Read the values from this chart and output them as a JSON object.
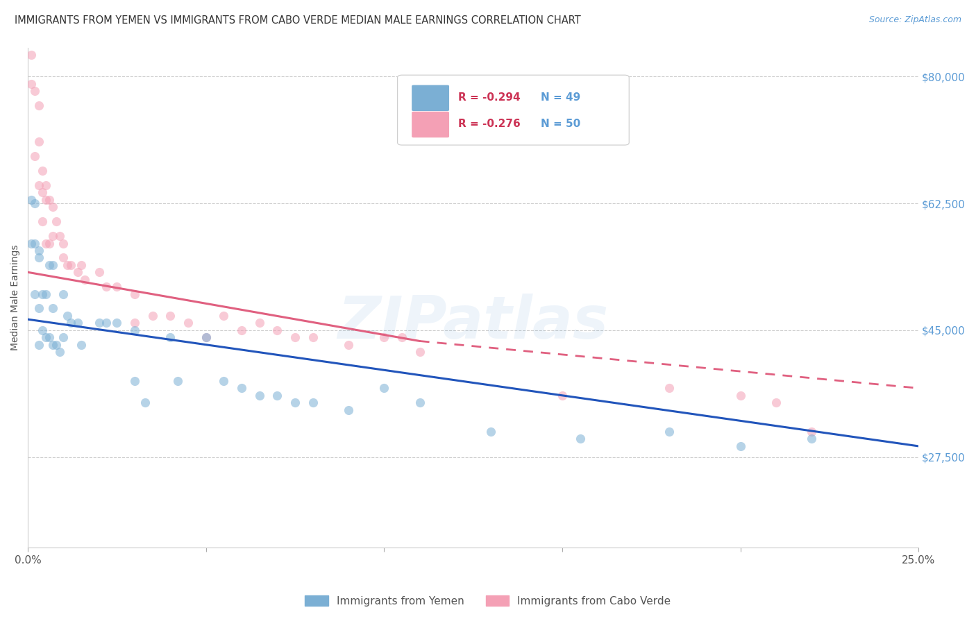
{
  "title": "IMMIGRANTS FROM YEMEN VS IMMIGRANTS FROM CABO VERDE MEDIAN MALE EARNINGS CORRELATION CHART",
  "source": "Source: ZipAtlas.com",
  "ylabel": "Median Male Earnings",
  "y_ticks": [
    27500,
    45000,
    62500,
    80000
  ],
  "y_tick_labels": [
    "$27,500",
    "$45,000",
    "$62,500",
    "$80,000"
  ],
  "x_min": 0.0,
  "x_max": 0.25,
  "y_min": 15000,
  "y_max": 84000,
  "trend_yemen_x0": 0.0,
  "trend_yemen_y0": 46500,
  "trend_yemen_x1": 0.25,
  "trend_yemen_y1": 29000,
  "trend_cabo_x0": 0.0,
  "trend_cabo_y0": 53000,
  "trend_cabo_x1": 0.11,
  "trend_cabo_y1": 43500,
  "trend_cabo_dash_x0": 0.11,
  "trend_cabo_dash_y0": 43500,
  "trend_cabo_dash_x1": 0.25,
  "trend_cabo_dash_y1": 37000,
  "legend_r1": "R = -0.294",
  "legend_n1": "N = 49",
  "legend_r2": "R = -0.276",
  "legend_n2": "N = 50",
  "legend_label1": "Immigrants from Yemen",
  "legend_label2": "Immigrants from Cabo Verde",
  "color_yemen": "#7BAFD4",
  "color_cabo": "#F4A0B5",
  "color_trend_yemen": "#2255BB",
  "color_trend_cabo": "#E06080",
  "background_color": "#FFFFFF",
  "title_fontsize": 10.5,
  "source_fontsize": 9,
  "scatter_alpha": 0.55,
  "scatter_size": 90,
  "yemen_x": [
    0.001,
    0.001,
    0.002,
    0.002,
    0.002,
    0.003,
    0.003,
    0.003,
    0.003,
    0.004,
    0.004,
    0.005,
    0.005,
    0.006,
    0.006,
    0.007,
    0.007,
    0.007,
    0.008,
    0.009,
    0.01,
    0.01,
    0.011,
    0.012,
    0.014,
    0.015,
    0.02,
    0.022,
    0.025,
    0.03,
    0.03,
    0.033,
    0.04,
    0.042,
    0.05,
    0.055,
    0.06,
    0.065,
    0.07,
    0.075,
    0.08,
    0.09,
    0.1,
    0.11,
    0.13,
    0.155,
    0.18,
    0.2,
    0.22
  ],
  "yemen_y": [
    63000,
    57000,
    62500,
    57000,
    50000,
    56000,
    55000,
    48000,
    43000,
    50000,
    45000,
    50000,
    44000,
    54000,
    44000,
    54000,
    48000,
    43000,
    43000,
    42000,
    50000,
    44000,
    47000,
    46000,
    46000,
    43000,
    46000,
    46000,
    46000,
    45000,
    38000,
    35000,
    44000,
    38000,
    44000,
    38000,
    37000,
    36000,
    36000,
    35000,
    35000,
    34000,
    37000,
    35000,
    31000,
    30000,
    31000,
    29000,
    30000
  ],
  "cabo_x": [
    0.001,
    0.001,
    0.002,
    0.002,
    0.003,
    0.003,
    0.003,
    0.004,
    0.004,
    0.004,
    0.005,
    0.005,
    0.005,
    0.006,
    0.006,
    0.007,
    0.007,
    0.008,
    0.009,
    0.01,
    0.01,
    0.011,
    0.012,
    0.014,
    0.015,
    0.016,
    0.02,
    0.022,
    0.025,
    0.03,
    0.03,
    0.035,
    0.04,
    0.045,
    0.05,
    0.055,
    0.06,
    0.065,
    0.07,
    0.075,
    0.08,
    0.09,
    0.1,
    0.105,
    0.11,
    0.15,
    0.18,
    0.2,
    0.21,
    0.22
  ],
  "cabo_y": [
    83000,
    79000,
    78000,
    69000,
    76000,
    71000,
    65000,
    67000,
    64000,
    60000,
    65000,
    63000,
    57000,
    63000,
    57000,
    62000,
    58000,
    60000,
    58000,
    57000,
    55000,
    54000,
    54000,
    53000,
    54000,
    52000,
    53000,
    51000,
    51000,
    50000,
    46000,
    47000,
    47000,
    46000,
    44000,
    47000,
    45000,
    46000,
    45000,
    44000,
    44000,
    43000,
    44000,
    44000,
    42000,
    36000,
    37000,
    36000,
    35000,
    31000
  ]
}
